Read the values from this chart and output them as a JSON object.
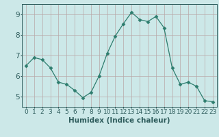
{
  "x": [
    0,
    1,
    2,
    3,
    4,
    5,
    6,
    7,
    8,
    9,
    10,
    11,
    12,
    13,
    14,
    15,
    16,
    17,
    18,
    19,
    20,
    21,
    22,
    23
  ],
  "y": [
    6.5,
    6.9,
    6.8,
    6.4,
    5.7,
    5.6,
    5.3,
    4.95,
    5.2,
    6.0,
    7.1,
    7.95,
    8.55,
    9.1,
    8.75,
    8.65,
    8.9,
    8.35,
    6.4,
    5.6,
    5.7,
    5.5,
    4.8,
    4.75
  ],
  "line_color": "#2e7d6e",
  "marker": "D",
  "marker_size": 2.5,
  "bg_color": "#cce8e8",
  "grid_color": "#b8a8a8",
  "axis_color": "#2e5c5c",
  "xlabel": "Humidex (Indice chaleur)",
  "ylim": [
    4.5,
    9.5
  ],
  "xlim": [
    -0.5,
    23.5
  ],
  "yticks": [
    5,
    6,
    7,
    8,
    9
  ],
  "xticks": [
    0,
    1,
    2,
    3,
    4,
    5,
    6,
    7,
    8,
    9,
    10,
    11,
    12,
    13,
    14,
    15,
    16,
    17,
    18,
    19,
    20,
    21,
    22,
    23
  ],
  "font_size_label": 7.5,
  "font_size_tick": 6.5
}
